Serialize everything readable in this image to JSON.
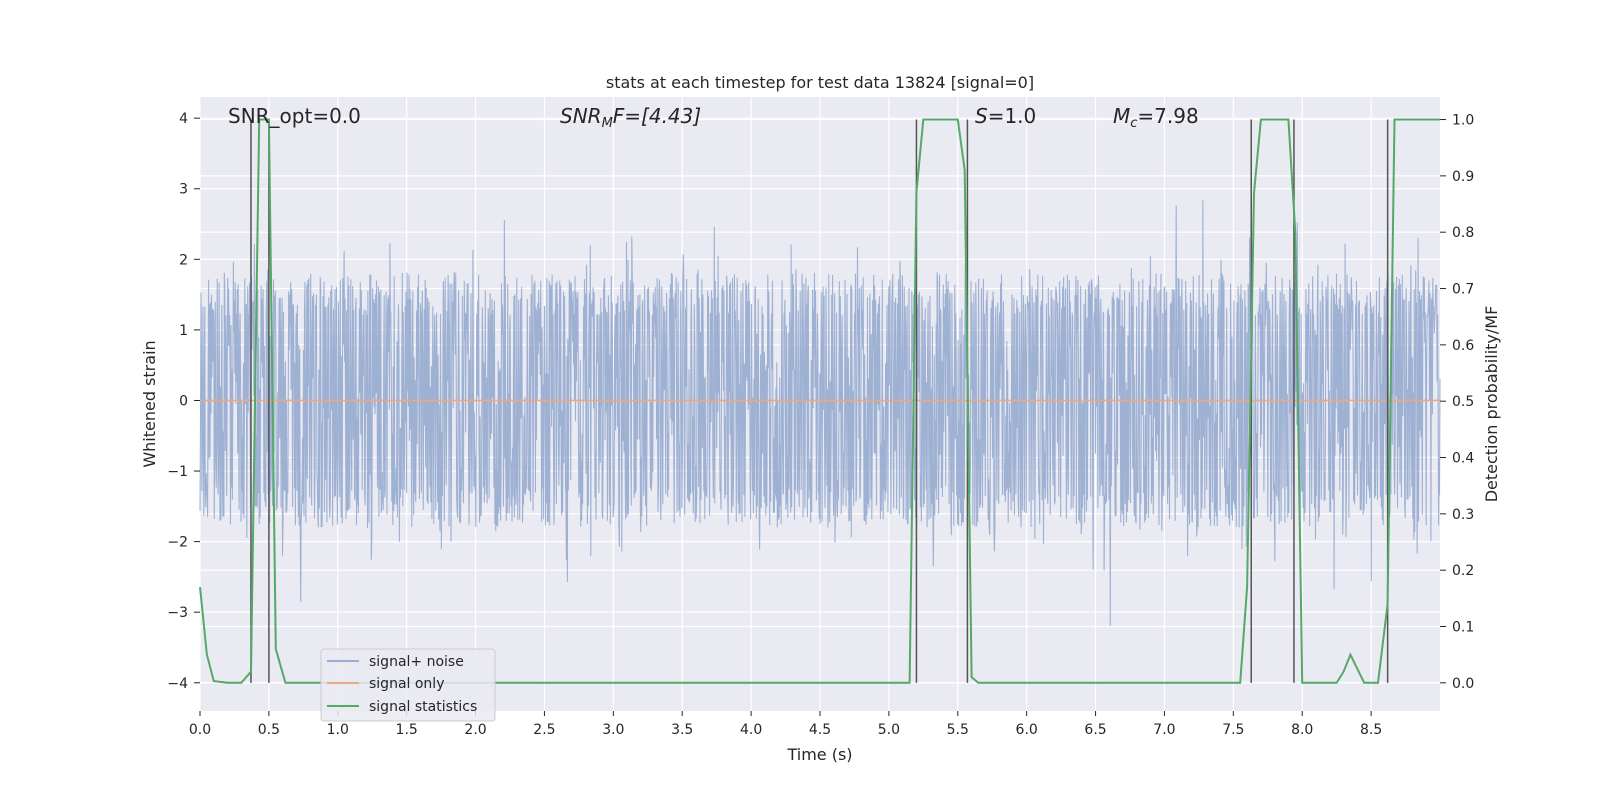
{
  "chart_data": {
    "type": "line",
    "title": "stats at each timestep for test data 13824 [signal=0]",
    "xlabel": "Time (s)",
    "ylabel_left": "Whitened strain",
    "ylabel_right": "Detection probability/MF",
    "xlim": [
      0,
      9.0
    ],
    "ylim_left": [
      -4.4,
      4.3
    ],
    "ylim_right": [
      -0.05,
      1.04
    ],
    "xticks": [
      0.0,
      0.5,
      1.0,
      1.5,
      2.0,
      2.5,
      3.0,
      3.5,
      4.0,
      4.5,
      5.0,
      5.5,
      6.0,
      6.5,
      7.0,
      7.5,
      8.0,
      8.5
    ],
    "xtick_labels": [
      "0.0",
      "0.5",
      "1.0",
      "1.5",
      "2.0",
      "2.5",
      "3.0",
      "3.5",
      "4.0",
      "4.5",
      "5.0",
      "5.5",
      "6.0",
      "6.5",
      "7.0",
      "7.5",
      "8.0",
      "8.5"
    ],
    "yticks_left": [
      -4,
      -3,
      -2,
      -1,
      0,
      1,
      2,
      3,
      4
    ],
    "ytick_labels_left": [
      "−4",
      "−3",
      "−2",
      "−1",
      "0",
      "1",
      "2",
      "3",
      "4"
    ],
    "yticks_right": [
      0.0,
      0.1,
      0.2,
      0.3,
      0.4,
      0.5,
      0.6,
      0.7,
      0.8,
      0.9,
      1.0
    ],
    "ytick_labels_right": [
      "0.0",
      "0.1",
      "0.2",
      "0.3",
      "0.4",
      "0.5",
      "0.6",
      "0.7",
      "0.8",
      "0.9",
      "1.0"
    ],
    "grid": true,
    "legend_position": "bottom-left",
    "annotations": {
      "snr_opt": "SNR_opt=0.0",
      "snr_mf_base": "SNR",
      "snr_mf_sub": "M",
      "snr_mf_rest": "F=[4.43]",
      "s_label": "S",
      "s_value": "=1.0",
      "mc_base": "M",
      "mc_sub": "c",
      "mc_value": "=7.98"
    },
    "series": [
      {
        "name": "signal+ noise",
        "color": "#9aaed1",
        "description_type": "dense noise trace",
        "noise_envelope": [
          -1.6,
          1.6
        ],
        "noise_extremes": [
          -4.0,
          3.9
        ]
      },
      {
        "name": "signal only",
        "color": "#e8a986",
        "x": [
          0,
          9.0
        ],
        "y": [
          0,
          0
        ]
      },
      {
        "name": "signal statistics",
        "color": "#55a868",
        "axis": "right",
        "x": [
          0.0,
          0.05,
          0.1,
          0.2,
          0.3,
          0.37,
          0.43,
          0.5,
          0.55,
          0.62,
          0.7,
          5.1,
          5.15,
          5.2,
          5.25,
          5.3,
          5.5,
          5.55,
          5.6,
          5.65,
          5.7,
          7.55,
          7.6,
          7.65,
          7.7,
          7.9,
          7.95,
          8.0,
          8.05,
          8.1,
          8.25,
          8.3,
          8.35,
          8.45,
          8.5,
          8.55,
          8.62,
          8.67,
          8.72,
          9.0
        ],
        "y": [
          0.17,
          0.05,
          0.003,
          0.0,
          0.0,
          0.02,
          1.0,
          1.0,
          0.06,
          0.0,
          0.0,
          0.0,
          0.0,
          0.87,
          1.0,
          1.0,
          1.0,
          0.91,
          0.01,
          0.0,
          0.0,
          0.0,
          0.17,
          0.87,
          1.0,
          1.0,
          0.8,
          0.0,
          0.0,
          0.0,
          0.0,
          0.02,
          0.05,
          0.0,
          0.0,
          0.0,
          0.14,
          1.0,
          1.0,
          1.0
        ]
      }
    ],
    "markers": {
      "color": "#555555",
      "x": [
        0.37,
        0.5,
        5.2,
        5.57,
        7.63,
        7.94,
        8.62
      ]
    }
  },
  "legend": {
    "signal_noise": "signal+ noise",
    "signal_only": "signal only",
    "signal_statistics": "signal statistics"
  }
}
